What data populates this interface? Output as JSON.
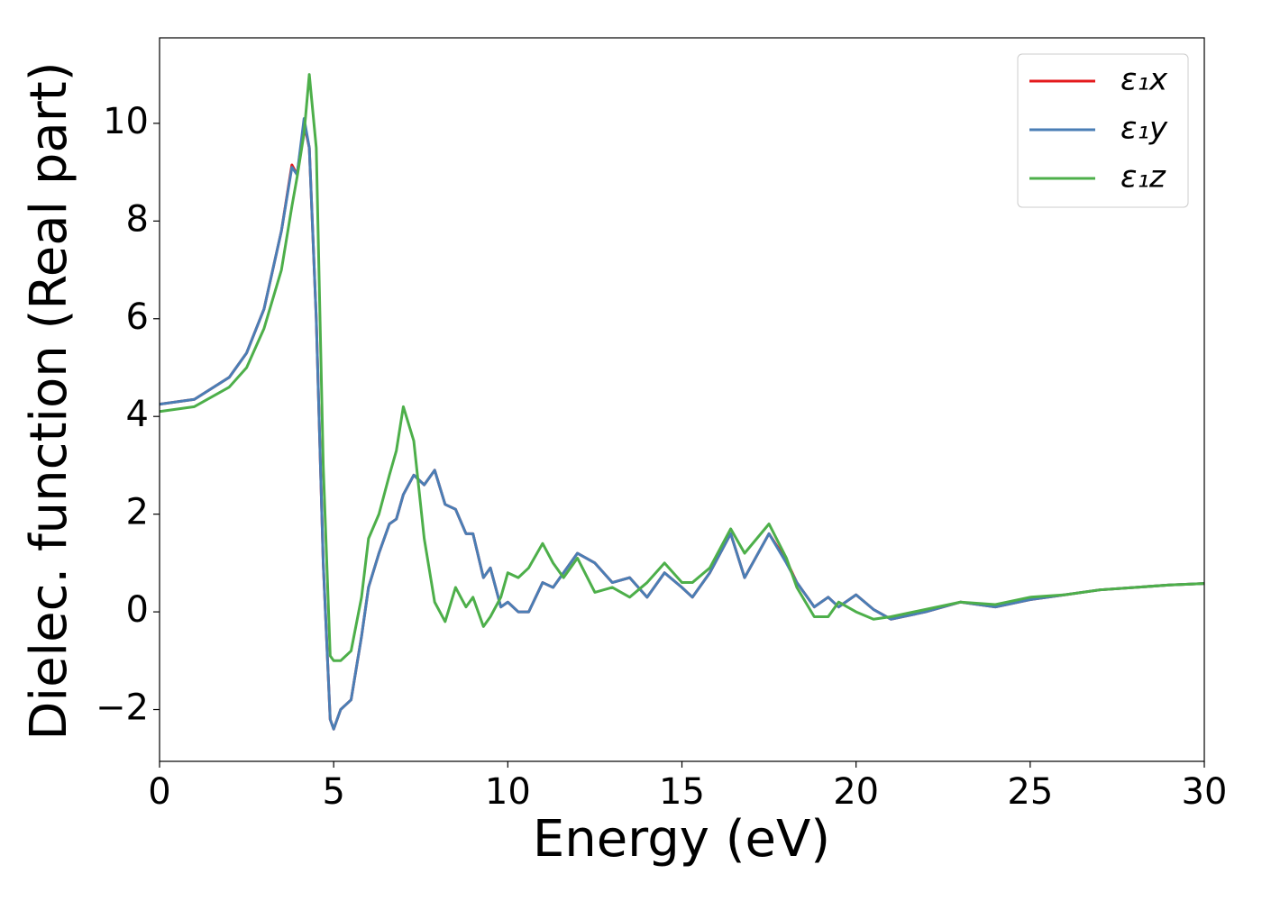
{
  "chart_data": {
    "type": "line",
    "xlabel": "Energy (eV)",
    "ylabel": "Dielec. function (Real part)",
    "x": [
      0,
      1,
      2,
      2.5,
      3,
      3.5,
      3.8,
      3.95,
      4.15,
      4.3,
      4.5,
      4.7,
      4.9,
      5.0,
      5.2,
      5.5,
      5.8,
      6.0,
      6.3,
      6.6,
      6.8,
      7.0,
      7.3,
      7.6,
      7.9,
      8.2,
      8.5,
      8.8,
      9.0,
      9.3,
      9.5,
      9.8,
      10.0,
      10.3,
      10.6,
      11.0,
      11.3,
      11.6,
      12.0,
      12.5,
      13.0,
      13.5,
      14.0,
      14.5,
      15.0,
      15.3,
      15.8,
      16.4,
      16.8,
      17.5,
      18.0,
      18.3,
      18.8,
      19.2,
      19.5,
      20.0,
      20.5,
      21.0,
      22,
      23,
      24,
      25,
      26,
      27,
      28,
      29,
      30
    ],
    "series": [
      {
        "name": "ε₁x",
        "color": "#e41a1c",
        "values": [
          4.25,
          4.35,
          4.8,
          5.3,
          6.2,
          7.8,
          9.15,
          8.95,
          10.0,
          9.5,
          6,
          1,
          -2.2,
          -2.4,
          -2.0,
          -1.8,
          -0.5,
          0.5,
          1.2,
          1.8,
          1.9,
          2.4,
          2.8,
          2.6,
          2.9,
          2.2,
          2.1,
          1.6,
          1.6,
          0.7,
          0.9,
          0.1,
          0.2,
          0.0,
          0.0,
          0.6,
          0.5,
          0.8,
          1.2,
          1.0,
          0.6,
          0.7,
          0.3,
          0.8,
          0.5,
          0.3,
          0.8,
          1.6,
          0.7,
          1.6,
          1.05,
          0.6,
          0.1,
          0.3,
          0.1,
          0.35,
          0.05,
          -0.15,
          0.0,
          0.2,
          0.1,
          0.25,
          0.35,
          0.45,
          0.5,
          0.55,
          0.58
        ]
      },
      {
        "name": "ε₁y",
        "color": "#4a7eb5",
        "values": [
          4.25,
          4.35,
          4.8,
          5.3,
          6.2,
          7.8,
          9.1,
          8.95,
          10.1,
          9.5,
          6,
          1,
          -2.2,
          -2.4,
          -2.0,
          -1.8,
          -0.5,
          0.5,
          1.2,
          1.8,
          1.9,
          2.4,
          2.8,
          2.6,
          2.9,
          2.2,
          2.1,
          1.6,
          1.6,
          0.7,
          0.9,
          0.1,
          0.2,
          0.0,
          0.0,
          0.6,
          0.5,
          0.8,
          1.2,
          1.0,
          0.6,
          0.7,
          0.3,
          0.8,
          0.5,
          0.3,
          0.8,
          1.6,
          0.7,
          1.6,
          1.0,
          0.6,
          0.1,
          0.3,
          0.1,
          0.35,
          0.05,
          -0.15,
          0.0,
          0.2,
          0.1,
          0.25,
          0.35,
          0.45,
          0.5,
          0.55,
          0.58
        ]
      },
      {
        "name": "ε₁z",
        "color": "#4daf4a",
        "values": [
          4.1,
          4.2,
          4.6,
          5,
          5.8,
          7.0,
          8.3,
          8.9,
          9.8,
          11.0,
          9.5,
          3,
          -0.9,
          -1.0,
          -1.0,
          -0.8,
          0.3,
          1.5,
          2.0,
          2.8,
          3.3,
          4.2,
          3.5,
          1.5,
          0.2,
          -0.2,
          0.5,
          0.1,
          0.3,
          -0.3,
          -0.1,
          0.3,
          0.8,
          0.7,
          0.9,
          1.4,
          1.0,
          0.7,
          1.1,
          0.4,
          0.5,
          0.3,
          0.6,
          1.0,
          0.6,
          0.6,
          0.9,
          1.7,
          1.2,
          1.8,
          1.1,
          0.5,
          -0.1,
          -0.1,
          0.2,
          0.0,
          -0.15,
          -0.1,
          0.05,
          0.2,
          0.15,
          0.3,
          0.35,
          0.45,
          0.5,
          0.55,
          0.58
        ]
      }
    ],
    "xlim": [
      0,
      30
    ],
    "xticks": [
      0,
      5,
      10,
      15,
      20,
      25,
      30
    ],
    "ylim": [
      -3.06,
      11.75
    ],
    "yticks": [
      {
        "value": -2,
        "label": "−2"
      },
      0,
      2,
      4,
      6,
      8,
      10
    ],
    "grid": false,
    "legend": "upper right"
  }
}
